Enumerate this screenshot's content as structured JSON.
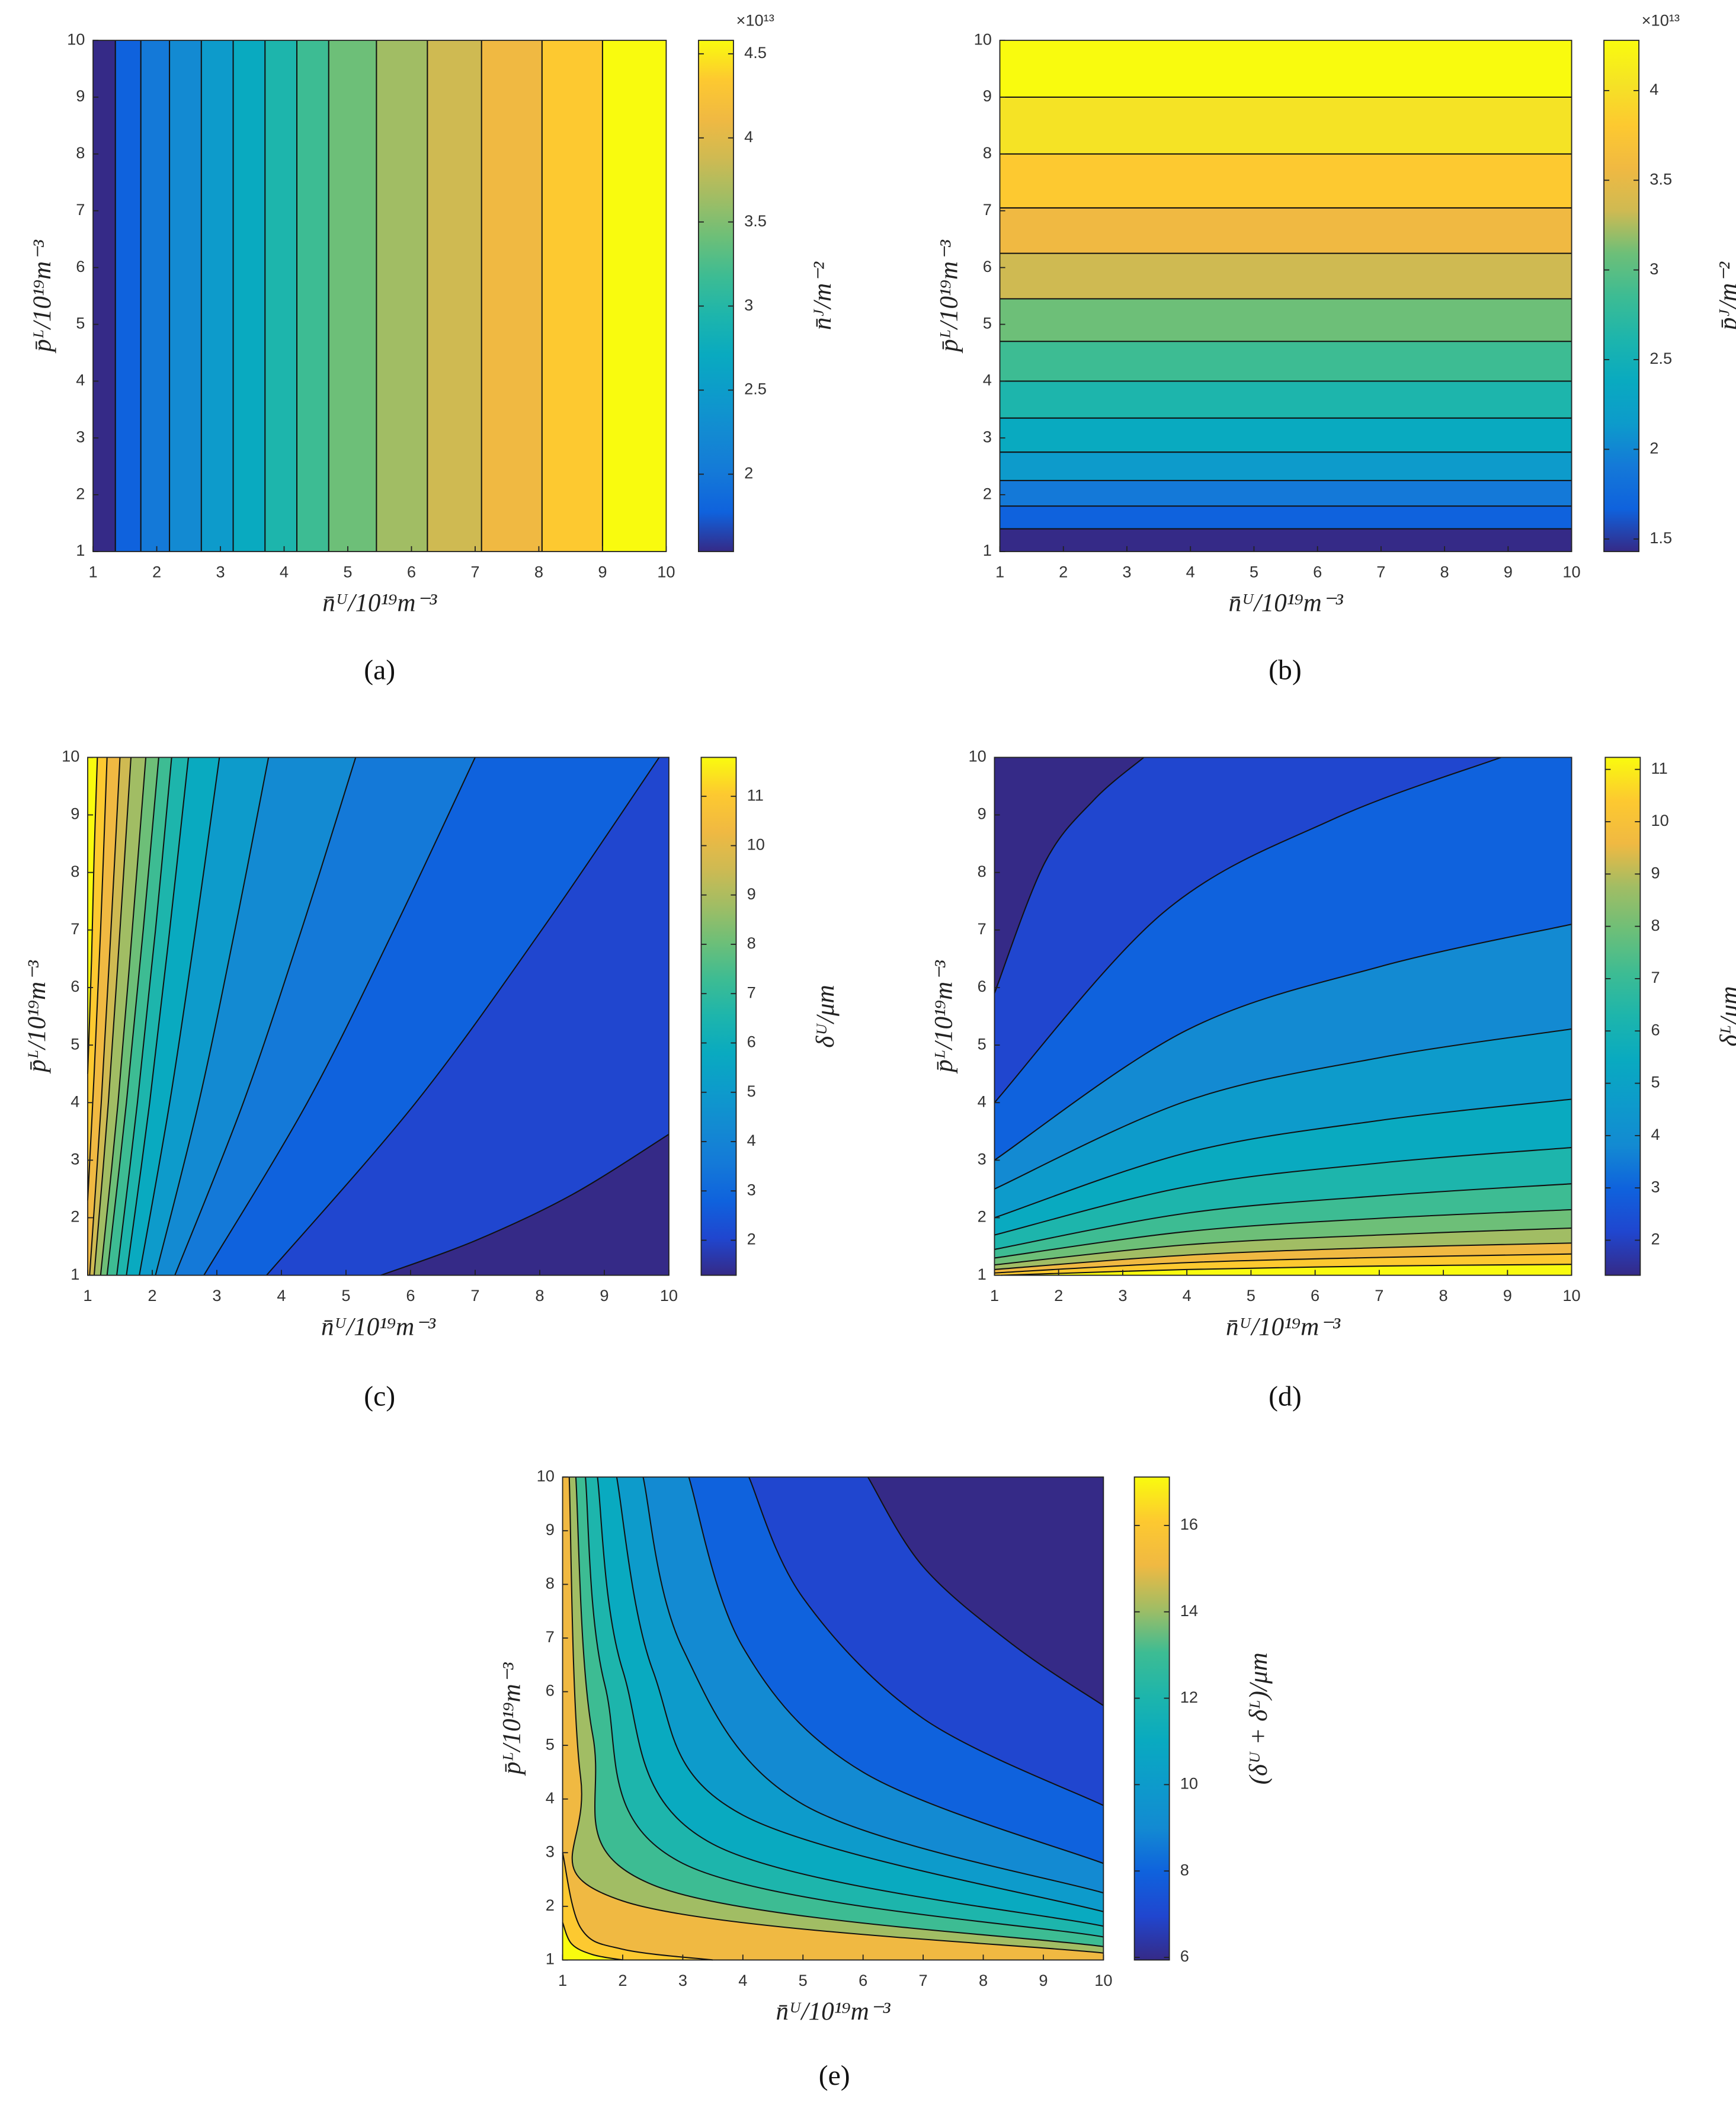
{
  "chart_data": [
    {
      "type": "contour",
      "panel_label": "(a)",
      "x_label": "n̄ᵁ/10¹⁹m⁻³",
      "y_label": "p̄ᴸ/10¹⁹m⁻³",
      "xlim": [
        1,
        10
      ],
      "ylim": [
        1,
        10
      ],
      "xticks": [
        1,
        2,
        3,
        4,
        5,
        6,
        7,
        8,
        9,
        10
      ],
      "yticks": [
        1,
        2,
        3,
        4,
        5,
        6,
        7,
        8,
        9,
        10
      ],
      "colors": [
        "#352a87",
        "#0f62dd",
        "#1479d8",
        "#138ad2",
        "#0d9bcb",
        "#09aac0",
        "#1db5ac",
        "#3dbc93",
        "#6dbf78",
        "#a1bd64",
        "#cfba52",
        "#f0b942",
        "#fdc930",
        "#f9fb0e"
      ],
      "contours": [
        {
          "x": [
            1.35,
            1.35
          ],
          "y": [
            1,
            10
          ]
        },
        {
          "x": [
            1.75,
            1.75
          ],
          "y": [
            1,
            10
          ]
        },
        {
          "x": [
            2.2,
            2.2
          ],
          "y": [
            1,
            10
          ]
        },
        {
          "x": [
            2.7,
            2.7
          ],
          "y": [
            1,
            10
          ]
        },
        {
          "x": [
            3.2,
            3.2
          ],
          "y": [
            1,
            10
          ]
        },
        {
          "x": [
            3.7,
            3.7
          ],
          "y": [
            1,
            10
          ]
        },
        {
          "x": [
            4.2,
            4.2
          ],
          "y": [
            1,
            10
          ]
        },
        {
          "x": [
            4.7,
            4.7
          ],
          "y": [
            1,
            10
          ]
        },
        {
          "x": [
            5.45,
            5.45
          ],
          "y": [
            1,
            10
          ]
        },
        {
          "x": [
            6.25,
            6.25
          ],
          "y": [
            1,
            10
          ]
        },
        {
          "x": [
            7.1,
            7.1
          ],
          "y": [
            1,
            10
          ]
        },
        {
          "x": [
            8.05,
            8.05
          ],
          "y": [
            1,
            10
          ]
        },
        {
          "x": [
            9.0,
            9.0
          ],
          "y": [
            1,
            10
          ]
        }
      ],
      "colorbar": {
        "label": "n̄ᴶ/m⁻²",
        "multiplier": "×10¹³",
        "lim": [
          15400000000000.0,
          45800000000000.0
        ],
        "ticks": [
          {
            "value": 20000000000000.0,
            "label": "2"
          },
          {
            "value": 25000000000000.0,
            "label": "2.5"
          },
          {
            "value": 30000000000000.0,
            "label": "3"
          },
          {
            "value": 35000000000000.0,
            "label": "3.5"
          },
          {
            "value": 40000000000000.0,
            "label": "4"
          },
          {
            "value": 45000000000000.0,
            "label": "4.5"
          }
        ]
      }
    },
    {
      "type": "contour",
      "panel_label": "(b)",
      "x_label": "n̄ᵁ/10¹⁹m⁻³",
      "y_label": "p̄ᴸ/10¹⁹m⁻³",
      "xlim": [
        1,
        10
      ],
      "ylim": [
        1,
        10
      ],
      "xticks": [
        1,
        2,
        3,
        4,
        5,
        6,
        7,
        8,
        9,
        10
      ],
      "yticks": [
        1,
        2,
        3,
        4,
        5,
        6,
        7,
        8,
        9,
        10
      ],
      "colors": [
        "#352a87",
        "#0f62dd",
        "#1479d8",
        "#0d9bcb",
        "#09aac0",
        "#1db5ac",
        "#3dbc93",
        "#6dbf78",
        "#cfba52",
        "#f0b942",
        "#fdc930",
        "#f5e325",
        "#f9fb0e"
      ],
      "contours": [
        {
          "x": [
            10,
            1
          ],
          "y": [
            1.4,
            1.4
          ]
        },
        {
          "x": [
            10,
            1
          ],
          "y": [
            1.8,
            1.8
          ]
        },
        {
          "x": [
            10,
            1
          ],
          "y": [
            2.25,
            2.25
          ]
        },
        {
          "x": [
            10,
            1
          ],
          "y": [
            2.75,
            2.75
          ]
        },
        {
          "x": [
            10,
            1
          ],
          "y": [
            3.35,
            3.35
          ]
        },
        {
          "x": [
            10,
            1
          ],
          "y": [
            4.0,
            4.0
          ]
        },
        {
          "x": [
            10,
            1
          ],
          "y": [
            4.7,
            4.7
          ]
        },
        {
          "x": [
            10,
            1
          ],
          "y": [
            5.45,
            5.45
          ]
        },
        {
          "x": [
            10,
            1
          ],
          "y": [
            6.25,
            6.25
          ]
        },
        {
          "x": [
            10,
            1
          ],
          "y": [
            7.05,
            7.05
          ]
        },
        {
          "x": [
            10,
            1
          ],
          "y": [
            8.0,
            8.0
          ]
        },
        {
          "x": [
            10,
            1
          ],
          "y": [
            9.0,
            9.0
          ]
        }
      ],
      "colorbar": {
        "label": "p̄ᴶ/m⁻²",
        "multiplier": "×10¹³",
        "lim": [
          14300000000000.0,
          42800000000000.0
        ],
        "ticks": [
          {
            "value": 15000000000000.0,
            "label": "1.5"
          },
          {
            "value": 20000000000000.0,
            "label": "2"
          },
          {
            "value": 25000000000000.0,
            "label": "2.5"
          },
          {
            "value": 30000000000000.0,
            "label": "3"
          },
          {
            "value": 35000000000000.0,
            "label": "3.5"
          },
          {
            "value": 40000000000000.0,
            "label": "4"
          }
        ]
      }
    },
    {
      "type": "contour",
      "panel_label": "(c)",
      "x_label": "n̄ᵁ/10¹⁹m⁻³",
      "y_label": "p̄ᴸ/10¹⁹m⁻³",
      "xlim": [
        1,
        10
      ],
      "ylim": [
        1,
        10
      ],
      "xticks": [
        1,
        2,
        3,
        4,
        5,
        6,
        7,
        8,
        9,
        10
      ],
      "yticks": [
        1,
        2,
        3,
        4,
        5,
        6,
        7,
        8,
        9,
        10
      ],
      "colors": [
        "#352a87",
        "#2046cf",
        "#0f62dd",
        "#1479d8",
        "#138ad2",
        "#0d9bcb",
        "#09aac0",
        "#1db5ac",
        "#3dbc93",
        "#6dbf78",
        "#a1bd64",
        "#cfba52",
        "#f0b942",
        "#fdc930",
        "#f9fb0e"
      ],
      "contours": [
        {
          "x": [
            10,
            8.5,
            7,
            5.54
          ],
          "y": [
            3.45,
            2.4,
            1.6,
            1
          ]
        },
        {
          "x": [
            9.85,
            8.03,
            6.08,
            3.77
          ],
          "y": [
            10,
            7,
            4,
            1
          ]
        },
        {
          "x": [
            7.0,
            5.74,
            4.4,
            2.8
          ],
          "y": [
            10,
            7,
            4,
            1
          ]
        },
        {
          "x": [
            5.15,
            4.31,
            3.41,
            2.35
          ],
          "y": [
            10,
            7,
            4,
            1
          ]
        },
        {
          "x": [
            3.8,
            3.28,
            2.72,
            2.05
          ],
          "y": [
            10,
            7,
            4,
            1
          ]
        },
        {
          "x": [
            3.04,
            2.67,
            2.27,
            1.8
          ],
          "y": [
            10,
            7,
            4,
            1
          ]
        },
        {
          "x": [
            2.56,
            2.27,
            1.96,
            1.6
          ],
          "y": [
            10,
            7,
            4,
            1
          ]
        },
        {
          "x": [
            2.3,
            2.05,
            1.77,
            1.45
          ],
          "y": [
            10,
            7,
            4,
            1
          ]
        },
        {
          "x": [
            2.1,
            1.86,
            1.6,
            1.3
          ],
          "y": [
            10,
            7,
            4,
            1
          ]
        },
        {
          "x": [
            1.9,
            1.69,
            1.47,
            1.2
          ],
          "y": [
            10,
            7,
            4,
            1
          ]
        },
        {
          "x": [
            1.67,
            1.5,
            1.32,
            1.1
          ],
          "y": [
            10,
            7,
            4,
            1
          ]
        },
        {
          "x": [
            1.5,
            1.36,
            1.21,
            1.03
          ],
          "y": [
            10,
            7,
            4,
            1
          ]
        },
        {
          "x": [
            1.3,
            1.2,
            1.1,
            1
          ],
          "y": [
            10,
            7,
            4.5,
            2.3
          ]
        },
        {
          "x": [
            1.15,
            1.1,
            1.06,
            1
          ],
          "y": [
            10,
            8.3,
            6.5,
            4.5
          ]
        }
      ],
      "colorbar": {
        "label": "δᵁ/μm",
        "lim": [
          1.29,
          11.79
        ],
        "ticks": [
          2,
          3,
          4,
          5,
          6,
          7,
          8,
          9,
          10,
          11
        ]
      }
    },
    {
      "type": "contour",
      "panel_label": "(d)",
      "x_label": "n̄ᵁ/10¹⁹m⁻³",
      "y_label": "p̄ᴸ/10¹⁹m⁻³",
      "xlim": [
        1,
        10
      ],
      "ylim": [
        1,
        10
      ],
      "xticks": [
        1,
        2,
        3,
        4,
        5,
        6,
        7,
        8,
        9,
        10
      ],
      "yticks": [
        1,
        2,
        3,
        4,
        5,
        6,
        7,
        8,
        9,
        10
      ],
      "colors": [
        "#352a87",
        "#2046cf",
        "#0f62dd",
        "#138ad2",
        "#0d9bcb",
        "#09aac0",
        "#1db5ac",
        "#3dbc93",
        "#6dbf78",
        "#a1bd64",
        "#f0b942",
        "#fdc930",
        "#f9fb0e"
      ],
      "contours": [
        {
          "x": [
            1,
            1.78,
            2.55,
            3.33
          ],
          "y": [
            5.9,
            8.16,
            9.26,
            10
          ]
        },
        {
          "x": [
            1,
            3.63,
            6.27,
            8.9
          ],
          "y": [
            4,
            7.3,
            8.92,
            10
          ]
        },
        {
          "x": [
            1,
            4,
            7,
            10
          ],
          "y": [
            3,
            5.26,
            6.36,
            7.1
          ]
        },
        {
          "x": [
            1,
            4,
            7,
            10
          ],
          "y": [
            2.5,
            4.03,
            4.78,
            5.28
          ]
        },
        {
          "x": [
            1,
            4,
            7,
            10
          ],
          "y": [
            2,
            3.13,
            3.69,
            4.06
          ]
        },
        {
          "x": [
            1,
            4,
            7,
            10
          ],
          "y": [
            1.7,
            2.54,
            2.95,
            3.22
          ]
        },
        {
          "x": [
            1,
            4,
            7,
            10
          ],
          "y": [
            1.45,
            2.08,
            2.38,
            2.59
          ]
        },
        {
          "x": [
            1,
            4,
            7,
            10
          ],
          "y": [
            1.3,
            1.76,
            1.99,
            2.14
          ]
        },
        {
          "x": [
            1,
            4,
            7,
            10
          ],
          "y": [
            1.18,
            1.53,
            1.7,
            1.82
          ]
        },
        {
          "x": [
            1,
            4,
            7,
            10
          ],
          "y": [
            1.1,
            1.35,
            1.48,
            1.56
          ]
        },
        {
          "x": [
            1,
            4,
            7,
            10
          ],
          "y": [
            1.04,
            1.22,
            1.31,
            1.37
          ]
        },
        {
          "x": [
            1.1,
            4,
            7,
            10
          ],
          "y": [
            1,
            1.1,
            1.16,
            1.19
          ]
        }
      ],
      "colorbar": {
        "label": "δᴸ/μm",
        "lim": [
          1.33,
          11.23
        ],
        "ticks": [
          2,
          3,
          4,
          5,
          6,
          7,
          8,
          9,
          10,
          11
        ]
      }
    },
    {
      "type": "contour",
      "panel_label": "(e)",
      "x_label": "n̄ᵁ/10¹⁹m⁻³",
      "y_label": "p̄ᴸ/10¹⁹m⁻³",
      "xlim": [
        1,
        10
      ],
      "ylim": [
        1,
        10
      ],
      "xticks": [
        1,
        2,
        3,
        4,
        5,
        6,
        7,
        8,
        9,
        10
      ],
      "yticks": [
        1,
        2,
        3,
        4,
        5,
        6,
        7,
        8,
        9,
        10
      ],
      "colors": [
        "#352a87",
        "#2046cf",
        "#0f62dd",
        "#138ad2",
        "#0d9bcb",
        "#09aac0",
        "#1db5ac",
        "#3dbc93",
        "#a1bd64",
        "#f0b942",
        "#fdc930",
        "#f9fb0e"
      ],
      "contours": [
        {
          "x": [
            6.08,
            7,
            8.5,
            10
          ],
          "y": [
            10,
            8.33,
            6.87,
            5.74
          ]
        },
        {
          "x": [
            4.1,
            5,
            7,
            10
          ],
          "y": [
            10,
            7.75,
            5.5,
            3.88
          ]
        },
        {
          "x": [
            3.1,
            4,
            6,
            10
          ],
          "y": [
            10,
            6.83,
            4.5,
            2.8
          ]
        },
        {
          "x": [
            2.34,
            3,
            5,
            10
          ],
          "y": [
            10,
            6.8,
            3.9,
            2.25
          ]
        },
        {
          "x": [
            1.9,
            2.5,
            4,
            10
          ],
          "y": [
            10,
            6.4,
            3.7,
            1.9
          ]
        },
        {
          "x": [
            1.58,
            2,
            3.5,
            10
          ],
          "y": [
            10,
            6.4,
            3.16,
            1.63
          ]
        },
        {
          "x": [
            1.38,
            1.7,
            3,
            10
          ],
          "y": [
            10,
            6.14,
            2.8,
            1.43
          ]
        },
        {
          "x": [
            1.22,
            1.5,
            2.5,
            10
          ],
          "y": [
            10,
            5.2,
            2.4,
            1.25
          ]
        },
        {
          "x": [
            1.11,
            1.3,
            2,
            10
          ],
          "y": [
            10,
            4.4,
            2.1,
            1.13
          ]
        },
        {
          "x": [
            1,
            1.3,
            2,
            3.5
          ],
          "y": [
            3.0,
            1.6,
            1.2,
            1
          ]
        },
        {
          "x": [
            1,
            1.15,
            1.5,
            2
          ],
          "y": [
            1.7,
            1.3,
            1.1,
            1
          ]
        }
      ],
      "colorbar": {
        "label": "(δᵁ + δᴸ)/μm",
        "lim": [
          5.94,
          17.12
        ],
        "ticks": [
          6,
          8,
          10,
          12,
          14,
          16
        ]
      }
    }
  ]
}
